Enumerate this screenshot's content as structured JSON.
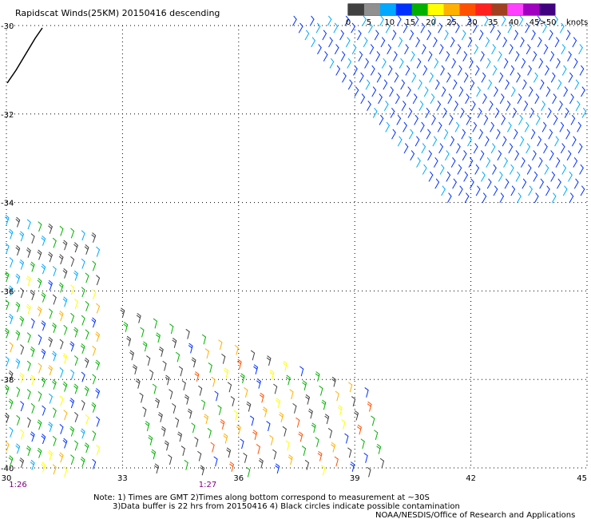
{
  "chart_data": {
    "type": "wind-barb",
    "title": "Rapidscat Winds(25KM) 20150416 descending",
    "lon_range": [
      30,
      45
    ],
    "lat_range": [
      -40,
      -30
    ],
    "x_ticks": [
      "30",
      "33",
      "36",
      "39",
      "42",
      "45"
    ],
    "y_ticks": [
      "-30",
      "-32",
      "-34",
      "-36",
      "-38",
      "-40"
    ],
    "time_labels": [
      {
        "label": "1:26",
        "lon": 30.3
      },
      {
        "label": "1:27",
        "lon": 35.2
      }
    ],
    "grid": "dotted",
    "legend": {
      "position": "top-right",
      "unit": "knots",
      "labels": [
        "0",
        "5",
        "10",
        "15",
        "20",
        "25",
        "30",
        "35",
        "40",
        "45",
        ">50"
      ],
      "colors": [
        "#404040",
        "#909090",
        "#00a8ff",
        "#0030ff",
        "#00b000",
        "#ffff00",
        "#ffb000",
        "#ff5000",
        "#ff2020",
        "#a04020",
        "#ff40ff",
        "#a000c0",
        "#400080"
      ]
    },
    "swaths": [
      {
        "name": "north",
        "lat": [
          -30.0,
          -34.1
        ],
        "lon": [
          37.4,
          45.0
        ],
        "wind_knots": 10,
        "dominant_color": "#0030ff"
      },
      {
        "name": "west",
        "lat": [
          -34.5,
          -40.2
        ],
        "lon": [
          30.0,
          32.4
        ],
        "wind_knots": [
          5,
          25
        ]
      },
      {
        "name": "south",
        "lat": [
          -36.6,
          -40.2
        ],
        "lon": [
          33.0,
          39.9
        ],
        "wind_knots": [
          0,
          25
        ]
      }
    ]
  },
  "notes": {
    "line1": "Note: 1) Times are GMT 2)Times along bottom correspond to measurement at ~30S",
    "line2": "3)Data buffer is 22 hrs from 20150416 4) Black circles indicate possible contamination",
    "credit": "NOAA/NESDIS/Office of Research and Applications"
  }
}
